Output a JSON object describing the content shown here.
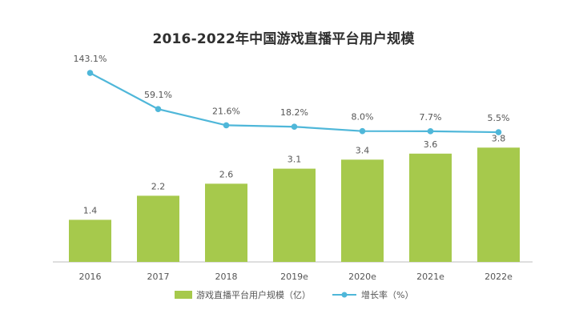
{
  "chart_data": {
    "type": "bar",
    "title": "2016-2022年中国游戏直播平台用户规模",
    "categories": [
      "2016",
      "2017",
      "2018",
      "2019e",
      "2020e",
      "2021e",
      "2022e"
    ],
    "series": [
      {
        "name": "游戏直播平台用户规模（亿）",
        "type": "bar",
        "values": [
          1.4,
          2.2,
          2.6,
          3.1,
          3.4,
          3.6,
          3.8
        ],
        "labels": [
          "1.4",
          "2.2",
          "2.6",
          "3.1",
          "3.4",
          "3.6",
          "3.8"
        ]
      },
      {
        "name": "增长率（%）",
        "type": "line",
        "values": [
          143.1,
          59.1,
          21.6,
          18.2,
          8.0,
          7.7,
          5.5
        ],
        "labels": [
          "143.1%",
          "59.1%",
          "21.6%",
          "18.2%",
          "8.0%",
          "7.7%",
          "5.5%"
        ]
      }
    ],
    "ylim": [
      0,
      4.5
    ],
    "y2lim": [
      0,
      160
    ],
    "grid": false,
    "legend_position": "bottom",
    "colors": {
      "bar": "#a6c94c",
      "line": "#4fb7d9",
      "axis": "#bdbdbd",
      "text": "#555555"
    }
  }
}
